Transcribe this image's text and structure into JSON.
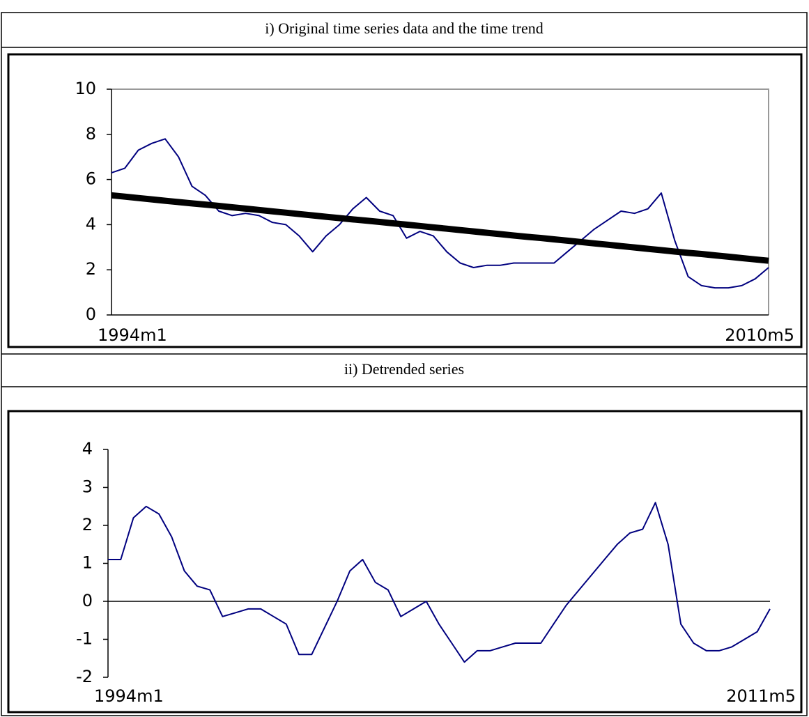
{
  "chart_data": [
    {
      "type": "line",
      "title": "i) Original time series data and the time trend",
      "categories": [
        "1994m1",
        null,
        null,
        null,
        null,
        null,
        null,
        null,
        null,
        null,
        null,
        null,
        null,
        null,
        null,
        null,
        null,
        null,
        null,
        null,
        null,
        null,
        null,
        null,
        null,
        null,
        null,
        null,
        null,
        null,
        null,
        null,
        null,
        null,
        null,
        null,
        null,
        null,
        null,
        null,
        null,
        null,
        null,
        null,
        null,
        null,
        null,
        null,
        null,
        "2010m5"
      ],
      "series": [
        {
          "color": "#00007f",
          "line_width": 2,
          "values": [
            6.3,
            6.5,
            7.3,
            7.6,
            7.8,
            7.0,
            5.7,
            5.3,
            4.6,
            4.4,
            4.5,
            4.4,
            4.1,
            4.0,
            3.5,
            2.8,
            3.5,
            4.0,
            4.7,
            5.2,
            4.6,
            4.4,
            3.4,
            3.7,
            3.5,
            2.8,
            2.3,
            2.1,
            2.2,
            2.2,
            2.3,
            2.3,
            2.3,
            2.3,
            2.8,
            3.3,
            3.8,
            4.2,
            4.6,
            4.5,
            4.7,
            5.4,
            3.3,
            1.7,
            1.3,
            1.2,
            1.2,
            1.3,
            1.6,
            2.1
          ]
        },
        {
          "color": "#000000",
          "line_width": 9,
          "values": [
            5.3,
            5.24,
            5.18,
            5.12,
            5.06,
            5.0,
            4.94,
            4.89,
            4.83,
            4.77,
            4.71,
            4.65,
            4.59,
            4.53,
            4.47,
            4.41,
            4.35,
            4.29,
            4.23,
            4.18,
            4.12,
            4.06,
            4.0,
            3.94,
            3.88,
            3.82,
            3.76,
            3.7,
            3.64,
            3.58,
            3.52,
            3.46,
            3.41,
            3.35,
            3.29,
            3.23,
            3.17,
            3.11,
            3.05,
            2.99,
            2.93,
            2.87,
            2.81,
            2.75,
            2.7,
            2.64,
            2.58,
            2.52,
            2.46,
            2.4
          ]
        }
      ],
      "ylim": [
        0,
        10
      ],
      "yticks": [
        0,
        2,
        4,
        6,
        8,
        10
      ],
      "frame": true
    },
    {
      "type": "line",
      "title": "ii) Detrended series",
      "categories": [
        "1994m1",
        null,
        null,
        null,
        null,
        null,
        null,
        null,
        null,
        null,
        null,
        null,
        null,
        null,
        null,
        null,
        null,
        null,
        null,
        null,
        null,
        null,
        null,
        null,
        null,
        null,
        null,
        null,
        null,
        null,
        null,
        null,
        null,
        null,
        null,
        null,
        null,
        null,
        null,
        null,
        null,
        null,
        null,
        null,
        null,
        null,
        null,
        null,
        null,
        null,
        null,
        null,
        "2011m5"
      ],
      "series": [
        {
          "color": "#00007f",
          "line_width": 2,
          "values": [
            1.1,
            1.1,
            2.2,
            2.5,
            2.3,
            1.7,
            0.8,
            0.4,
            0.3,
            -0.4,
            -0.3,
            -0.2,
            -0.2,
            -0.4,
            -0.6,
            -1.4,
            -1.4,
            -0.7,
            0.0,
            0.8,
            1.1,
            0.5,
            0.3,
            -0.4,
            -0.2,
            0.0,
            -0.6,
            -1.1,
            -1.6,
            -1.3,
            -1.3,
            -1.2,
            -1.1,
            -1.1,
            -1.1,
            -0.6,
            -0.1,
            0.3,
            0.7,
            1.1,
            1.5,
            1.8,
            1.9,
            2.6,
            1.5,
            -0.6,
            -1.1,
            -1.3,
            -1.3,
            -1.2,
            -1.0,
            -0.8,
            -0.2
          ]
        }
      ],
      "ylim": [
        -2,
        4
      ],
      "yticks": [
        -2,
        -1,
        0,
        1,
        2,
        3,
        4
      ],
      "frame": false
    }
  ]
}
